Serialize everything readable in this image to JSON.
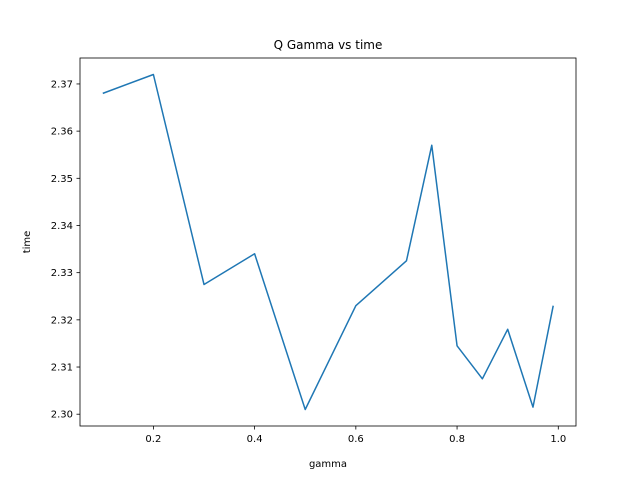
{
  "chart_data": {
    "type": "line",
    "title": "Q Gamma vs time",
    "xlabel": "gamma",
    "ylabel": "time",
    "xlim": [
      0.055,
      1.035
    ],
    "ylim": [
      2.2975,
      2.3755
    ],
    "xticks": [
      0.2,
      0.4,
      0.6,
      0.8,
      1.0
    ],
    "xtick_labels": [
      "0.2",
      "0.4",
      "0.6",
      "0.8",
      "1.0"
    ],
    "yticks": [
      2.3,
      2.31,
      2.32,
      2.33,
      2.34,
      2.35,
      2.36,
      2.37
    ],
    "ytick_labels": [
      "2.30",
      "2.31",
      "2.32",
      "2.33",
      "2.34",
      "2.35",
      "2.36",
      "2.37"
    ],
    "grid": false,
    "series": [
      {
        "color": "#1f77b4",
        "x": [
          0.1,
          0.2,
          0.3,
          0.4,
          0.5,
          0.6,
          0.7,
          0.75,
          0.8,
          0.85,
          0.9,
          0.95,
          0.99
        ],
        "y": [
          2.368,
          2.372,
          2.3275,
          2.334,
          2.301,
          2.323,
          2.3325,
          2.357,
          2.3145,
          2.3075,
          2.318,
          2.3015,
          2.323
        ]
      }
    ]
  }
}
